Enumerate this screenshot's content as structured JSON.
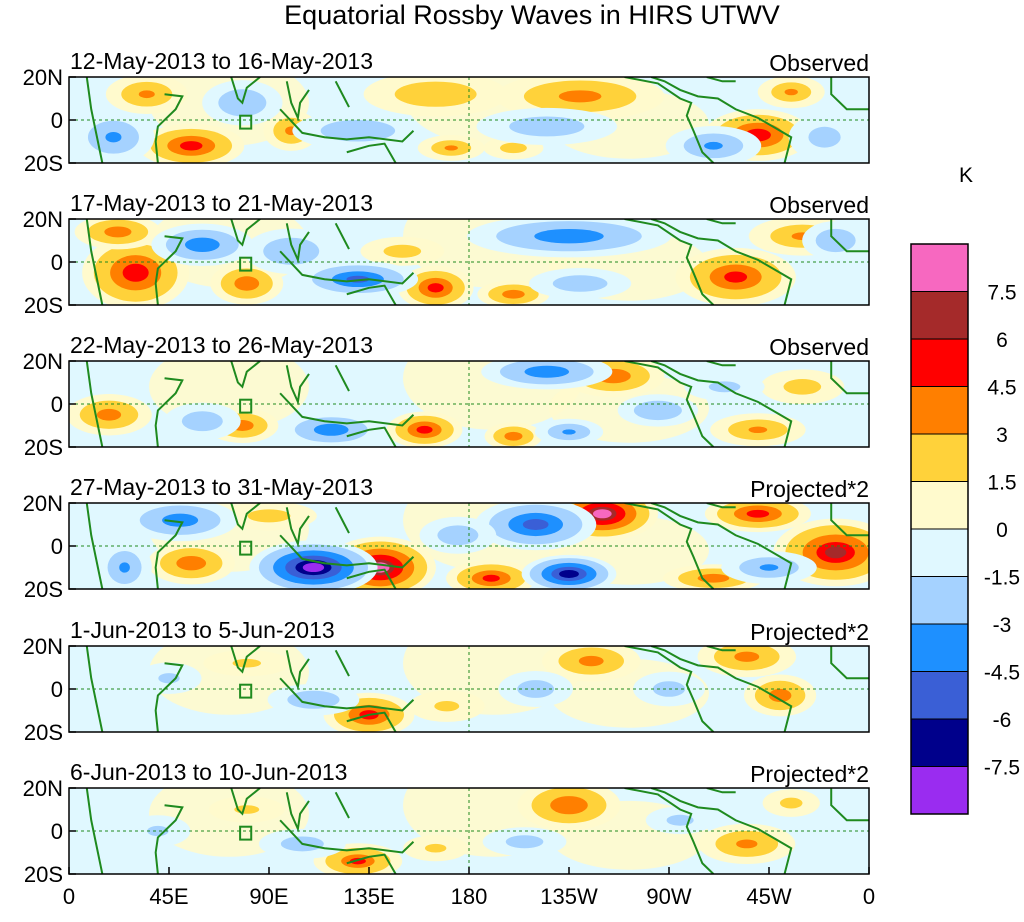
{
  "chart_data": {
    "type": "heatmap",
    "title": "Equatorial Rossby Waves in HIRS UTWV",
    "units": "K",
    "lat_range": [
      -20,
      20
    ],
    "lon_range": [
      0,
      360
    ],
    "y_tick_labels": [
      "20N",
      "0",
      "20S"
    ],
    "x_tick_labels": [
      "0",
      "45E",
      "90E",
      "135E",
      "180",
      "135W",
      "90W",
      "45W",
      "0"
    ],
    "colorbar": {
      "levels": [
        "7.5",
        "6",
        "4.5",
        "3",
        "1.5",
        "0",
        "-1.5",
        "-3",
        "-4.5",
        "-6",
        "-7.5"
      ],
      "colors": [
        "#f768c0",
        "#a52a2a",
        "#ff0000",
        "#ff7f00",
        "#ffd23a",
        "#fffacd",
        "#e0f8ff",
        "#a5d2ff",
        "#1e90ff",
        "#3a5fd6",
        "#00008b",
        "#9a2cf0"
      ]
    },
    "panels": [
      {
        "period": "12-May-2013 to 16-May-2013",
        "type": "Observed",
        "features": [
          {
            "lon": 55,
            "lat": -12,
            "value": 5.2,
            "rx": 14,
            "ry": 6
          },
          {
            "lon": 35,
            "lat": 12,
            "value": 3.2,
            "rx": 12,
            "ry": 6
          },
          {
            "lon": 100,
            "lat": -5,
            "value": 3.4,
            "rx": 8,
            "ry": 6
          },
          {
            "lon": 165,
            "lat": 12,
            "value": 2.8,
            "rx": 22,
            "ry": 7
          },
          {
            "lon": 230,
            "lat": 11,
            "value": 3.6,
            "rx": 24,
            "ry": 7
          },
          {
            "lon": 310,
            "lat": -7,
            "value": 5.5,
            "rx": 14,
            "ry": 7
          },
          {
            "lon": 325,
            "lat": 13,
            "value": 3.0,
            "rx": 10,
            "ry": 5
          },
          {
            "lon": 172,
            "lat": -13,
            "value": 3.0,
            "rx": 10,
            "ry": 4
          },
          {
            "lon": 200,
            "lat": -13,
            "value": 2.2,
            "rx": 10,
            "ry": 4
          },
          {
            "lon": 20,
            "lat": -8,
            "value": -3.2,
            "rx": 12,
            "ry": 8
          },
          {
            "lon": 78,
            "lat": 8,
            "value": -3.0,
            "rx": 12,
            "ry": 7
          },
          {
            "lon": 130,
            "lat": -5,
            "value": -2.8,
            "rx": 20,
            "ry": 6
          },
          {
            "lon": 215,
            "lat": -3,
            "value": -2.6,
            "rx": 22,
            "ry": 6
          },
          {
            "lon": 290,
            "lat": -12,
            "value": -3.2,
            "rx": 14,
            "ry": 6
          },
          {
            "lon": 340,
            "lat": -8,
            "value": -2.2,
            "rx": 12,
            "ry": 8
          }
        ]
      },
      {
        "period": "17-May-2013 to 21-May-2013",
        "type": "Observed",
        "features": [
          {
            "lon": 30,
            "lat": -5,
            "value": 5.5,
            "rx": 14,
            "ry": 10
          },
          {
            "lon": 80,
            "lat": -10,
            "value": 4.2,
            "rx": 10,
            "ry": 6
          },
          {
            "lon": 165,
            "lat": -12,
            "value": 5.2,
            "rx": 10,
            "ry": 6
          },
          {
            "lon": 200,
            "lat": -15,
            "value": 4.0,
            "rx": 10,
            "ry": 4
          },
          {
            "lon": 300,
            "lat": -7,
            "value": 5.0,
            "rx": 16,
            "ry": 8
          },
          {
            "lon": 330,
            "lat": 12,
            "value": 3.0,
            "rx": 16,
            "ry": 6
          },
          {
            "lon": 22,
            "lat": 14,
            "value": 4.0,
            "rx": 12,
            "ry": 5
          },
          {
            "lon": 150,
            "lat": 5,
            "value": 2.2,
            "rx": 14,
            "ry": 5
          },
          {
            "lon": 60,
            "lat": 8,
            "value": -4.2,
            "rx": 14,
            "ry": 6
          },
          {
            "lon": 100,
            "lat": 5,
            "value": -3.0,
            "rx": 14,
            "ry": 7
          },
          {
            "lon": 130,
            "lat": -8,
            "value": -5.0,
            "rx": 16,
            "ry": 5
          },
          {
            "lon": 225,
            "lat": 12,
            "value": -4.2,
            "rx": 28,
            "ry": 6
          },
          {
            "lon": 230,
            "lat": -10,
            "value": -2.6,
            "rx": 16,
            "ry": 5
          },
          {
            "lon": 345,
            "lat": 10,
            "value": -3.0,
            "rx": 10,
            "ry": 6
          }
        ]
      },
      {
        "period": "22-May-2013 to 26-May-2013",
        "type": "Observed",
        "features": [
          {
            "lon": 18,
            "lat": -5,
            "value": 3.8,
            "rx": 12,
            "ry": 6
          },
          {
            "lon": 78,
            "lat": -10,
            "value": 4.0,
            "rx": 10,
            "ry": 5
          },
          {
            "lon": 160,
            "lat": -12,
            "value": 5.2,
            "rx": 10,
            "ry": 5
          },
          {
            "lon": 200,
            "lat": -15,
            "value": 4.0,
            "rx": 8,
            "ry": 4
          },
          {
            "lon": 245,
            "lat": 13,
            "value": 4.2,
            "rx": 14,
            "ry": 6
          },
          {
            "lon": 310,
            "lat": -12,
            "value": 3.2,
            "rx": 14,
            "ry": 5
          },
          {
            "lon": 330,
            "lat": 8,
            "value": 2.2,
            "rx": 14,
            "ry": 6
          },
          {
            "lon": 60,
            "lat": -8,
            "value": -2.6,
            "rx": 12,
            "ry": 6
          },
          {
            "lon": 118,
            "lat": -12,
            "value": -4.2,
            "rx": 14,
            "ry": 5
          },
          {
            "lon": 215,
            "lat": 15,
            "value": -4.2,
            "rx": 18,
            "ry": 5
          },
          {
            "lon": 225,
            "lat": -13,
            "value": -3.2,
            "rx": 10,
            "ry": 4
          },
          {
            "lon": 265,
            "lat": -3,
            "value": -3.0,
            "rx": 12,
            "ry": 5
          },
          {
            "lon": 295,
            "lat": 8,
            "value": -2.0,
            "rx": 14,
            "ry": 5
          }
        ]
      },
      {
        "period": "27-May-2013 to 31-May-2013",
        "type": "Projected*2",
        "features": [
          {
            "lon": 140,
            "lat": -10,
            "value": 7.6,
            "rx": 14,
            "ry": 8
          },
          {
            "lon": 240,
            "lat": 15,
            "value": 7.6,
            "rx": 14,
            "ry": 7
          },
          {
            "lon": 345,
            "lat": -3,
            "value": 6.2,
            "rx": 16,
            "ry": 9
          },
          {
            "lon": 310,
            "lat": 15,
            "value": 5.2,
            "rx": 14,
            "ry": 5
          },
          {
            "lon": 190,
            "lat": -15,
            "value": 5.0,
            "rx": 12,
            "ry": 5
          },
          {
            "lon": 290,
            "lat": -15,
            "value": 4.0,
            "rx": 14,
            "ry": 4
          },
          {
            "lon": 55,
            "lat": -8,
            "value": 4.2,
            "rx": 12,
            "ry": 6
          },
          {
            "lon": 90,
            "lat": 14,
            "value": 2.2,
            "rx": 16,
            "ry": 5
          },
          {
            "lon": 110,
            "lat": -10,
            "value": -8.0,
            "rx": 16,
            "ry": 7
          },
          {
            "lon": 225,
            "lat": -13,
            "value": -7.0,
            "rx": 12,
            "ry": 5
          },
          {
            "lon": 210,
            "lat": 10,
            "value": -5.2,
            "rx": 16,
            "ry": 7
          },
          {
            "lon": 50,
            "lat": 12,
            "value": -4.0,
            "rx": 16,
            "ry": 6
          },
          {
            "lon": 25,
            "lat": -10,
            "value": -3.2,
            "rx": 8,
            "ry": 8
          },
          {
            "lon": 315,
            "lat": -10,
            "value": -3.2,
            "rx": 14,
            "ry": 5
          },
          {
            "lon": 175,
            "lat": 5,
            "value": -2.6,
            "rx": 12,
            "ry": 6
          }
        ]
      },
      {
        "period": "1-Jun-2013 to 5-Jun-2013",
        "type": "Projected*2",
        "features": [
          {
            "lon": 135,
            "lat": -12,
            "value": 5.2,
            "rx": 12,
            "ry": 6
          },
          {
            "lon": 235,
            "lat": 13,
            "value": 3.6,
            "rx": 14,
            "ry": 6
          },
          {
            "lon": 305,
            "lat": 15,
            "value": 3.6,
            "rx": 14,
            "ry": 6
          },
          {
            "lon": 320,
            "lat": -3,
            "value": 4.0,
            "rx": 10,
            "ry": 6
          },
          {
            "lon": 80,
            "lat": 12,
            "value": 1.8,
            "rx": 16,
            "ry": 5
          },
          {
            "lon": 170,
            "lat": -8,
            "value": 1.8,
            "rx": 14,
            "ry": 6
          },
          {
            "lon": 110,
            "lat": -5,
            "value": -2.8,
            "rx": 14,
            "ry": 5
          },
          {
            "lon": 210,
            "lat": 0,
            "value": -2.4,
            "rx": 12,
            "ry": 6
          },
          {
            "lon": 45,
            "lat": 5,
            "value": -1.8,
            "rx": 12,
            "ry": 6
          },
          {
            "lon": 270,
            "lat": 0,
            "value": -2.2,
            "rx": 12,
            "ry": 6
          }
        ]
      },
      {
        "period": "6-Jun-2013 to 10-Jun-2013",
        "type": "Projected*2",
        "features": [
          {
            "lon": 130,
            "lat": -14,
            "value": 4.5,
            "rx": 12,
            "ry": 5
          },
          {
            "lon": 225,
            "lat": 12,
            "value": 4.4,
            "rx": 14,
            "ry": 7
          },
          {
            "lon": 305,
            "lat": -6,
            "value": 3.4,
            "rx": 14,
            "ry": 6
          },
          {
            "lon": 80,
            "lat": 10,
            "value": 1.8,
            "rx": 14,
            "ry": 5
          },
          {
            "lon": 165,
            "lat": -8,
            "value": 1.8,
            "rx": 12,
            "ry": 5
          },
          {
            "lon": 325,
            "lat": 13,
            "value": 2.0,
            "rx": 10,
            "ry": 5
          },
          {
            "lon": 105,
            "lat": -6,
            "value": -2.4,
            "rx": 14,
            "ry": 5
          },
          {
            "lon": 205,
            "lat": -5,
            "value": -2.2,
            "rx": 14,
            "ry": 5
          },
          {
            "lon": 40,
            "lat": 0,
            "value": -1.8,
            "rx": 12,
            "ry": 6
          },
          {
            "lon": 275,
            "lat": 5,
            "value": -2.0,
            "rx": 12,
            "ry": 5
          }
        ]
      }
    ]
  }
}
